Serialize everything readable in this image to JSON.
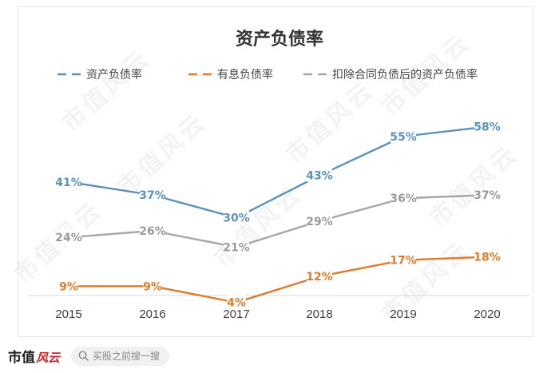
{
  "chart_data": {
    "type": "line",
    "title": "资产负债率",
    "categories": [
      "2015",
      "2016",
      "2017",
      "2018",
      "2019",
      "2020"
    ],
    "series": [
      {
        "name": "资产负债率",
        "values": [
          41,
          37,
          30,
          43,
          55,
          58
        ],
        "labels": [
          "41%",
          "37%",
          "30%",
          "43%",
          "55%",
          "58%"
        ],
        "color": "#5b93b8"
      },
      {
        "name": "有息负债率",
        "values": [
          9,
          9,
          4,
          12,
          17,
          18
        ],
        "labels": [
          "9%",
          "9%",
          "4%",
          "12%",
          "17%",
          "18%"
        ],
        "color": "#e07b2a"
      },
      {
        "name": "扣除合同负债后的资产负债率",
        "values": [
          24,
          26,
          21,
          29,
          36,
          37
        ],
        "labels": [
          "24%",
          "26%",
          "21%",
          "29%",
          "36%",
          "37%"
        ],
        "color": "#a6a6a6"
      }
    ],
    "ylim": [
      0,
      65
    ],
    "legend_position": "top",
    "grid": false
  },
  "watermark": {
    "text": "市值风云"
  },
  "footer": {
    "logo_text": "市值",
    "logo_script": "风云",
    "search_placeholder": "买股之前搜一搜",
    "search_icon": "search-icon"
  }
}
